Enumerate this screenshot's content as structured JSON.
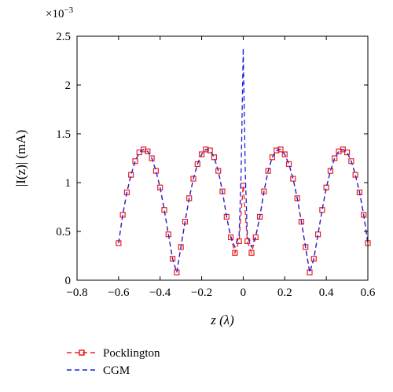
{
  "chart_data": {
    "type": "line",
    "title": "",
    "xlabel": "z (λ)",
    "ylabel": "|I(z)| (mA)",
    "y_multiplier_label": "×10",
    "y_multiplier_exp": "−3",
    "xlim": [
      -0.8,
      0.6
    ],
    "ylim": [
      0,
      2.5
    ],
    "x_ticks": [
      -0.8,
      -0.6,
      -0.4,
      -0.2,
      0,
      0.2,
      0.4,
      0.6
    ],
    "x_tick_labels": [
      "−0.8",
      "−0.6",
      "−0.4",
      "−0.2",
      "0",
      "0.2",
      "0.4",
      "0.6"
    ],
    "y_ticks": [
      0,
      0.5,
      1,
      1.5,
      2,
      2.5
    ],
    "y_tick_labels": [
      "0",
      "0.5",
      "1",
      "1.5",
      "2",
      "2.5"
    ],
    "grid": false,
    "legend_position": "bottom-left",
    "series": [
      {
        "name": "Pocklington",
        "color": "#e82020",
        "style": "dashed",
        "marker": "square",
        "x": [
          -0.6,
          -0.58,
          -0.56,
          -0.54,
          -0.52,
          -0.5,
          -0.48,
          -0.46,
          -0.44,
          -0.42,
          -0.4,
          -0.38,
          -0.36,
          -0.34,
          -0.32,
          -0.3,
          -0.28,
          -0.26,
          -0.24,
          -0.22,
          -0.2,
          -0.18,
          -0.16,
          -0.14,
          -0.12,
          -0.1,
          -0.08,
          -0.06,
          -0.04,
          -0.02,
          0,
          0.02,
          0.04,
          0.06,
          0.08,
          0.1,
          0.12,
          0.14,
          0.16,
          0.18,
          0.2,
          0.22,
          0.24,
          0.26,
          0.28,
          0.3,
          0.32,
          0.34,
          0.36,
          0.38,
          0.4,
          0.42,
          0.44,
          0.46,
          0.48,
          0.5,
          0.52,
          0.54,
          0.56,
          0.58,
          0.6
        ],
        "values": [
          0.38,
          0.67,
          0.9,
          1.08,
          1.22,
          1.31,
          1.34,
          1.32,
          1.25,
          1.12,
          0.95,
          0.72,
          0.47,
          0.22,
          0.08,
          0.34,
          0.6,
          0.84,
          1.04,
          1.19,
          1.29,
          1.34,
          1.33,
          1.26,
          1.12,
          0.91,
          0.65,
          0.44,
          0.28,
          0.4,
          0.97,
          0.4,
          0.28,
          0.44,
          0.65,
          0.91,
          1.12,
          1.26,
          1.33,
          1.34,
          1.29,
          1.19,
          1.04,
          0.84,
          0.6,
          0.34,
          0.08,
          0.22,
          0.47,
          0.72,
          0.95,
          1.12,
          1.25,
          1.32,
          1.34,
          1.31,
          1.22,
          1.08,
          0.9,
          0.67,
          0.38
        ]
      },
      {
        "name": "CGM",
        "color": "#1f1fe0",
        "style": "dashed",
        "marker": "none",
        "x": [
          -0.6,
          -0.58,
          -0.56,
          -0.54,
          -0.52,
          -0.5,
          -0.48,
          -0.46,
          -0.44,
          -0.42,
          -0.4,
          -0.38,
          -0.36,
          -0.34,
          -0.32,
          -0.3,
          -0.28,
          -0.26,
          -0.24,
          -0.22,
          -0.2,
          -0.18,
          -0.16,
          -0.14,
          -0.12,
          -0.1,
          -0.08,
          -0.06,
          -0.04,
          -0.02,
          -0.01,
          0,
          0.01,
          0.02,
          0.04,
          0.06,
          0.08,
          0.1,
          0.12,
          0.14,
          0.16,
          0.18,
          0.2,
          0.22,
          0.24,
          0.26,
          0.28,
          0.3,
          0.32,
          0.34,
          0.36,
          0.38,
          0.4,
          0.42,
          0.44,
          0.46,
          0.48,
          0.5,
          0.52,
          0.54,
          0.56,
          0.58,
          0.6
        ],
        "values": [
          0.38,
          0.67,
          0.9,
          1.08,
          1.22,
          1.31,
          1.34,
          1.32,
          1.25,
          1.12,
          0.95,
          0.72,
          0.47,
          0.22,
          0.08,
          0.34,
          0.6,
          0.84,
          1.04,
          1.19,
          1.29,
          1.34,
          1.33,
          1.26,
          1.12,
          0.91,
          0.65,
          0.45,
          0.34,
          0.45,
          1.1,
          2.38,
          1.1,
          0.45,
          0.34,
          0.45,
          0.65,
          0.91,
          1.12,
          1.26,
          1.33,
          1.34,
          1.29,
          1.19,
          1.04,
          0.84,
          0.6,
          0.34,
          0.08,
          0.22,
          0.47,
          0.72,
          0.95,
          1.12,
          1.25,
          1.32,
          1.34,
          1.31,
          1.22,
          1.08,
          0.9,
          0.67,
          0.38
        ]
      }
    ]
  }
}
